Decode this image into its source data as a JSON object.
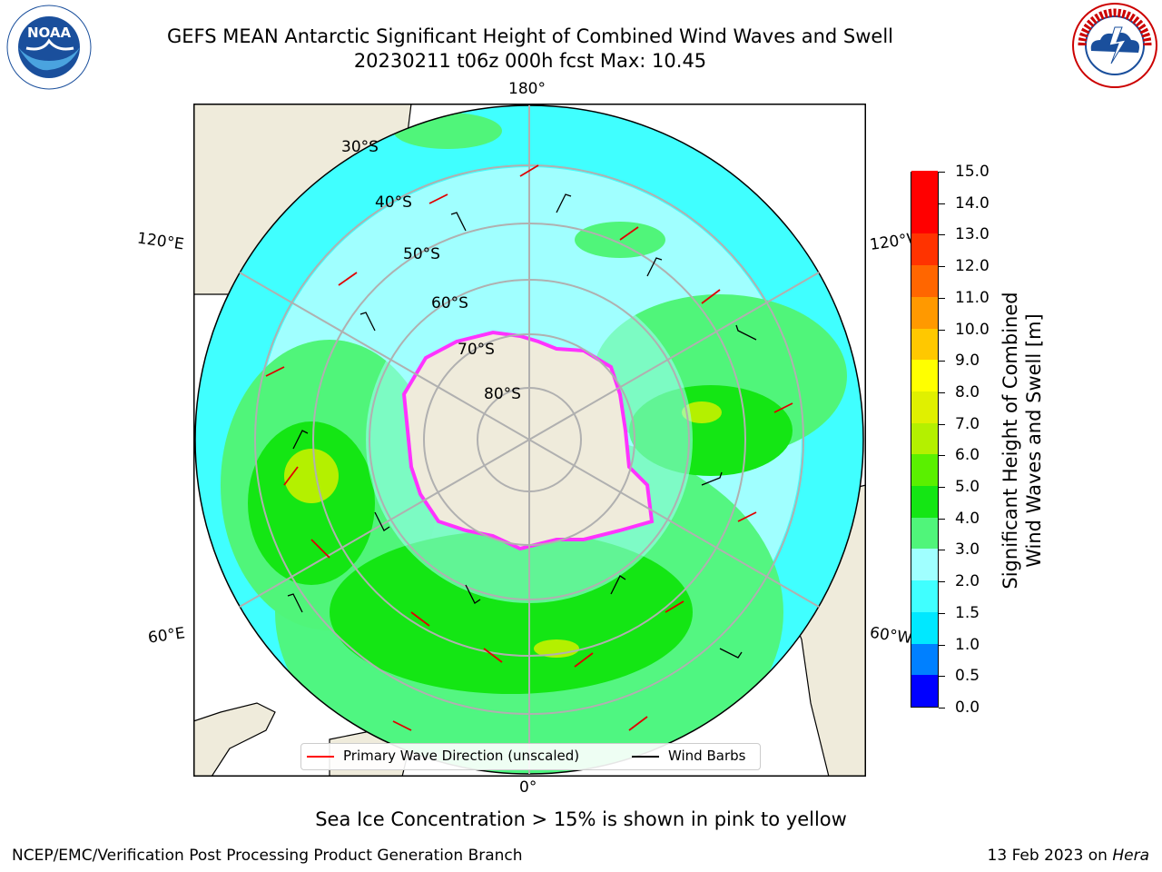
{
  "header": {
    "title_line1": "GEFS MEAN Antarctic Significant Height of Combined Wind Waves and Swell",
    "title_line2": "20230211 t06z 000h fcst   Max: 10.45"
  },
  "logos": {
    "left": {
      "text": "NOAA",
      "icon": "noaa-logo"
    },
    "right": {
      "icon": "national-weather-service-logo",
      "ring_text": "NATIONAL WEATHER SERVICE"
    }
  },
  "map": {
    "projection": "south-polar-stereographic",
    "longitude_labels": {
      "top": "180°",
      "bottom": "0°",
      "upper_left": "120°E",
      "upper_right": "120°W",
      "lower_left": "60°E",
      "lower_right": "60°W"
    },
    "latitude_labels": [
      "30°S",
      "40°S",
      "50°S",
      "60°S",
      "70°S",
      "80°S"
    ],
    "colors": {
      "land": "#efebdb",
      "antarctica": "#efebdb",
      "sea_ice_edge": "#ff33ff"
    }
  },
  "legend": {
    "items": [
      {
        "label": "Primary Wave Direction (unscaled)",
        "color": "#ff0000"
      },
      {
        "label": "Wind Barbs",
        "color": "#000000"
      }
    ]
  },
  "colorbar": {
    "title_line1": "Significant Height of Combined",
    "title_line2": "Wind Waves and Swell [m]",
    "ticks": [
      "0.0",
      "0.5",
      "1.0",
      "1.5",
      "2.0",
      "3.0",
      "4.0",
      "5.0",
      "6.0",
      "7.0",
      "8.0",
      "9.0",
      "10.0",
      "11.0",
      "12.0",
      "13.0",
      "14.0",
      "15.0"
    ],
    "colors": [
      "#0000ff",
      "#0080ff",
      "#00e8ff",
      "#40ffff",
      "#a0ffff",
      "#50f57a",
      "#14e614",
      "#5af000",
      "#b4f000",
      "#e0f000",
      "#ffff00",
      "#ffc800",
      "#ff9900",
      "#ff6600",
      "#ff3300",
      "#ff0000",
      "#ff0000"
    ]
  },
  "subtitle": "Sea Ice Concentration > 15% is shown in pink to yellow",
  "footer": {
    "left": "NCEP/EMC/Verification Post Processing Product Generation Branch",
    "date": "13 Feb 2023 on ",
    "host": "Hera"
  }
}
